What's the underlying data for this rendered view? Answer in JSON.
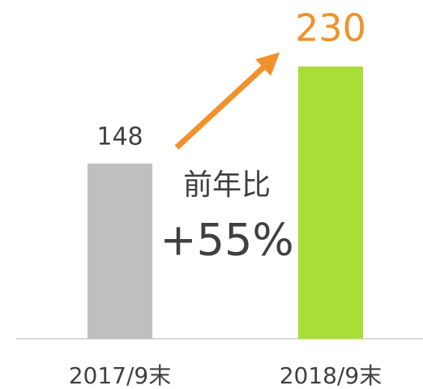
{
  "chart_data": {
    "type": "bar",
    "categories": [
      "2017/9末",
      "2018/9末"
    ],
    "values": [
      148,
      230
    ],
    "colors": [
      "#bfbfbf",
      "#a9de38"
    ],
    "ylim": [
      0,
      280
    ],
    "annotations": [
      "前年比",
      "+55%"
    ]
  }
}
